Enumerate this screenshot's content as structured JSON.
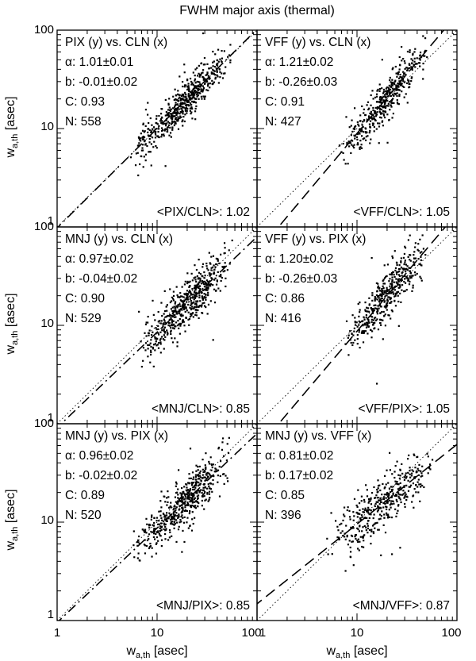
{
  "figure": {
    "title": "FWHM major axis (thermal)",
    "xlabel": {
      "main": "w",
      "sub": "a,th",
      "unit": " [asec]"
    },
    "ylabel": {
      "main": "w",
      "sub": "a,th",
      "unit": " [asec]"
    }
  },
  "chart_data": [
    {
      "type": "scatter",
      "title": "PIX (y) vs. CLN (x)",
      "stats": [
        "α: 1.01±0.01",
        "b: -0.01±0.02",
        "C: 0.93",
        "N: 558"
      ],
      "ratio_label": "<PIX/CLN>: 1.02",
      "alpha": 1.01,
      "b": -0.01,
      "n": 558,
      "x_range": [
        5,
        55
      ],
      "x_peak": 20,
      "scatter": 0.1,
      "seed": 11,
      "xlim": [
        1,
        100
      ],
      "ylim": [
        1,
        100
      ],
      "scale": "log",
      "fit_line": "dash-dot",
      "identity_line": "dotted"
    },
    {
      "type": "scatter",
      "title": "VFF (y) vs. CLN (x)",
      "stats": [
        "α: 1.21±0.02",
        "b: -0.26±0.03",
        "C: 0.91",
        "N: 427"
      ],
      "ratio_label": "<VFF/CLN>: 1.05",
      "alpha": 1.21,
      "b": -0.26,
      "n": 427,
      "x_range": [
        6,
        55
      ],
      "x_peak": 20,
      "scatter": 0.1,
      "seed": 23,
      "xlim": [
        1,
        100
      ],
      "ylim": [
        1,
        100
      ],
      "scale": "log",
      "fit_line": "dashed",
      "identity_line": "dotted"
    },
    {
      "type": "scatter",
      "title": "MNJ (y) vs. CLN (x)",
      "stats": [
        "α: 0.97±0.02",
        "b: -0.04±0.02",
        "C: 0.90",
        "N: 529"
      ],
      "ratio_label": "<MNJ/CLN>: 0.85",
      "alpha": 0.97,
      "b": -0.04,
      "n": 529,
      "x_range": [
        6,
        60
      ],
      "x_peak": 22,
      "scatter": 0.12,
      "seed": 37,
      "xlim": [
        1,
        100
      ],
      "ylim": [
        1,
        100
      ],
      "scale": "log",
      "fit_line": "dash-dot",
      "identity_line": "dotted"
    },
    {
      "type": "scatter",
      "title": "VFF (y) vs. PIX (x)",
      "stats": [
        "α: 1.20±0.02",
        "b: -0.26±0.03",
        "C: 0.86",
        "N: 416"
      ],
      "ratio_label": "<VFF/PIX>: 1.05",
      "alpha": 1.2,
      "b": -0.26,
      "n": 416,
      "x_range": [
        7,
        50
      ],
      "x_peak": 22,
      "scatter": 0.12,
      "seed": 41,
      "xlim": [
        1,
        100
      ],
      "ylim": [
        1,
        100
      ],
      "scale": "log",
      "fit_line": "dashed",
      "identity_line": "dotted"
    },
    {
      "type": "scatter",
      "title": "MNJ (y) vs. PIX (x)",
      "stats": [
        "α: 0.96±0.02",
        "b: -0.02±0.02",
        "C: 0.89",
        "N: 520"
      ],
      "ratio_label": "<MNJ/PIX>: 0.85",
      "alpha": 0.96,
      "b": -0.02,
      "n": 520,
      "x_range": [
        5,
        55
      ],
      "x_peak": 22,
      "scatter": 0.12,
      "seed": 53,
      "xlim": [
        1,
        100
      ],
      "ylim": [
        1,
        100
      ],
      "scale": "log",
      "fit_line": "dash-dot",
      "identity_line": "dotted"
    },
    {
      "type": "scatter",
      "title": "MNJ (y) vs. VFF (x)",
      "stats": [
        "α: 0.81±0.02",
        "b: 0.17±0.02",
        "C: 0.85",
        "N: 396"
      ],
      "ratio_label": "<MNJ/VFF>: 0.87",
      "alpha": 0.81,
      "b": 0.17,
      "n": 396,
      "x_range": [
        5,
        60
      ],
      "x_peak": 20,
      "scatter": 0.12,
      "seed": 67,
      "xlim": [
        1,
        100
      ],
      "ylim": [
        1,
        100
      ],
      "scale": "log",
      "fit_line": "dashed",
      "identity_line": "dotted"
    }
  ],
  "ticks": {
    "x_panel_left": [
      "1",
      "10",
      "100"
    ],
    "x_panel_right": [
      "1",
      "10",
      "100"
    ],
    "y_left": [
      "1",
      "10",
      "100"
    ]
  }
}
